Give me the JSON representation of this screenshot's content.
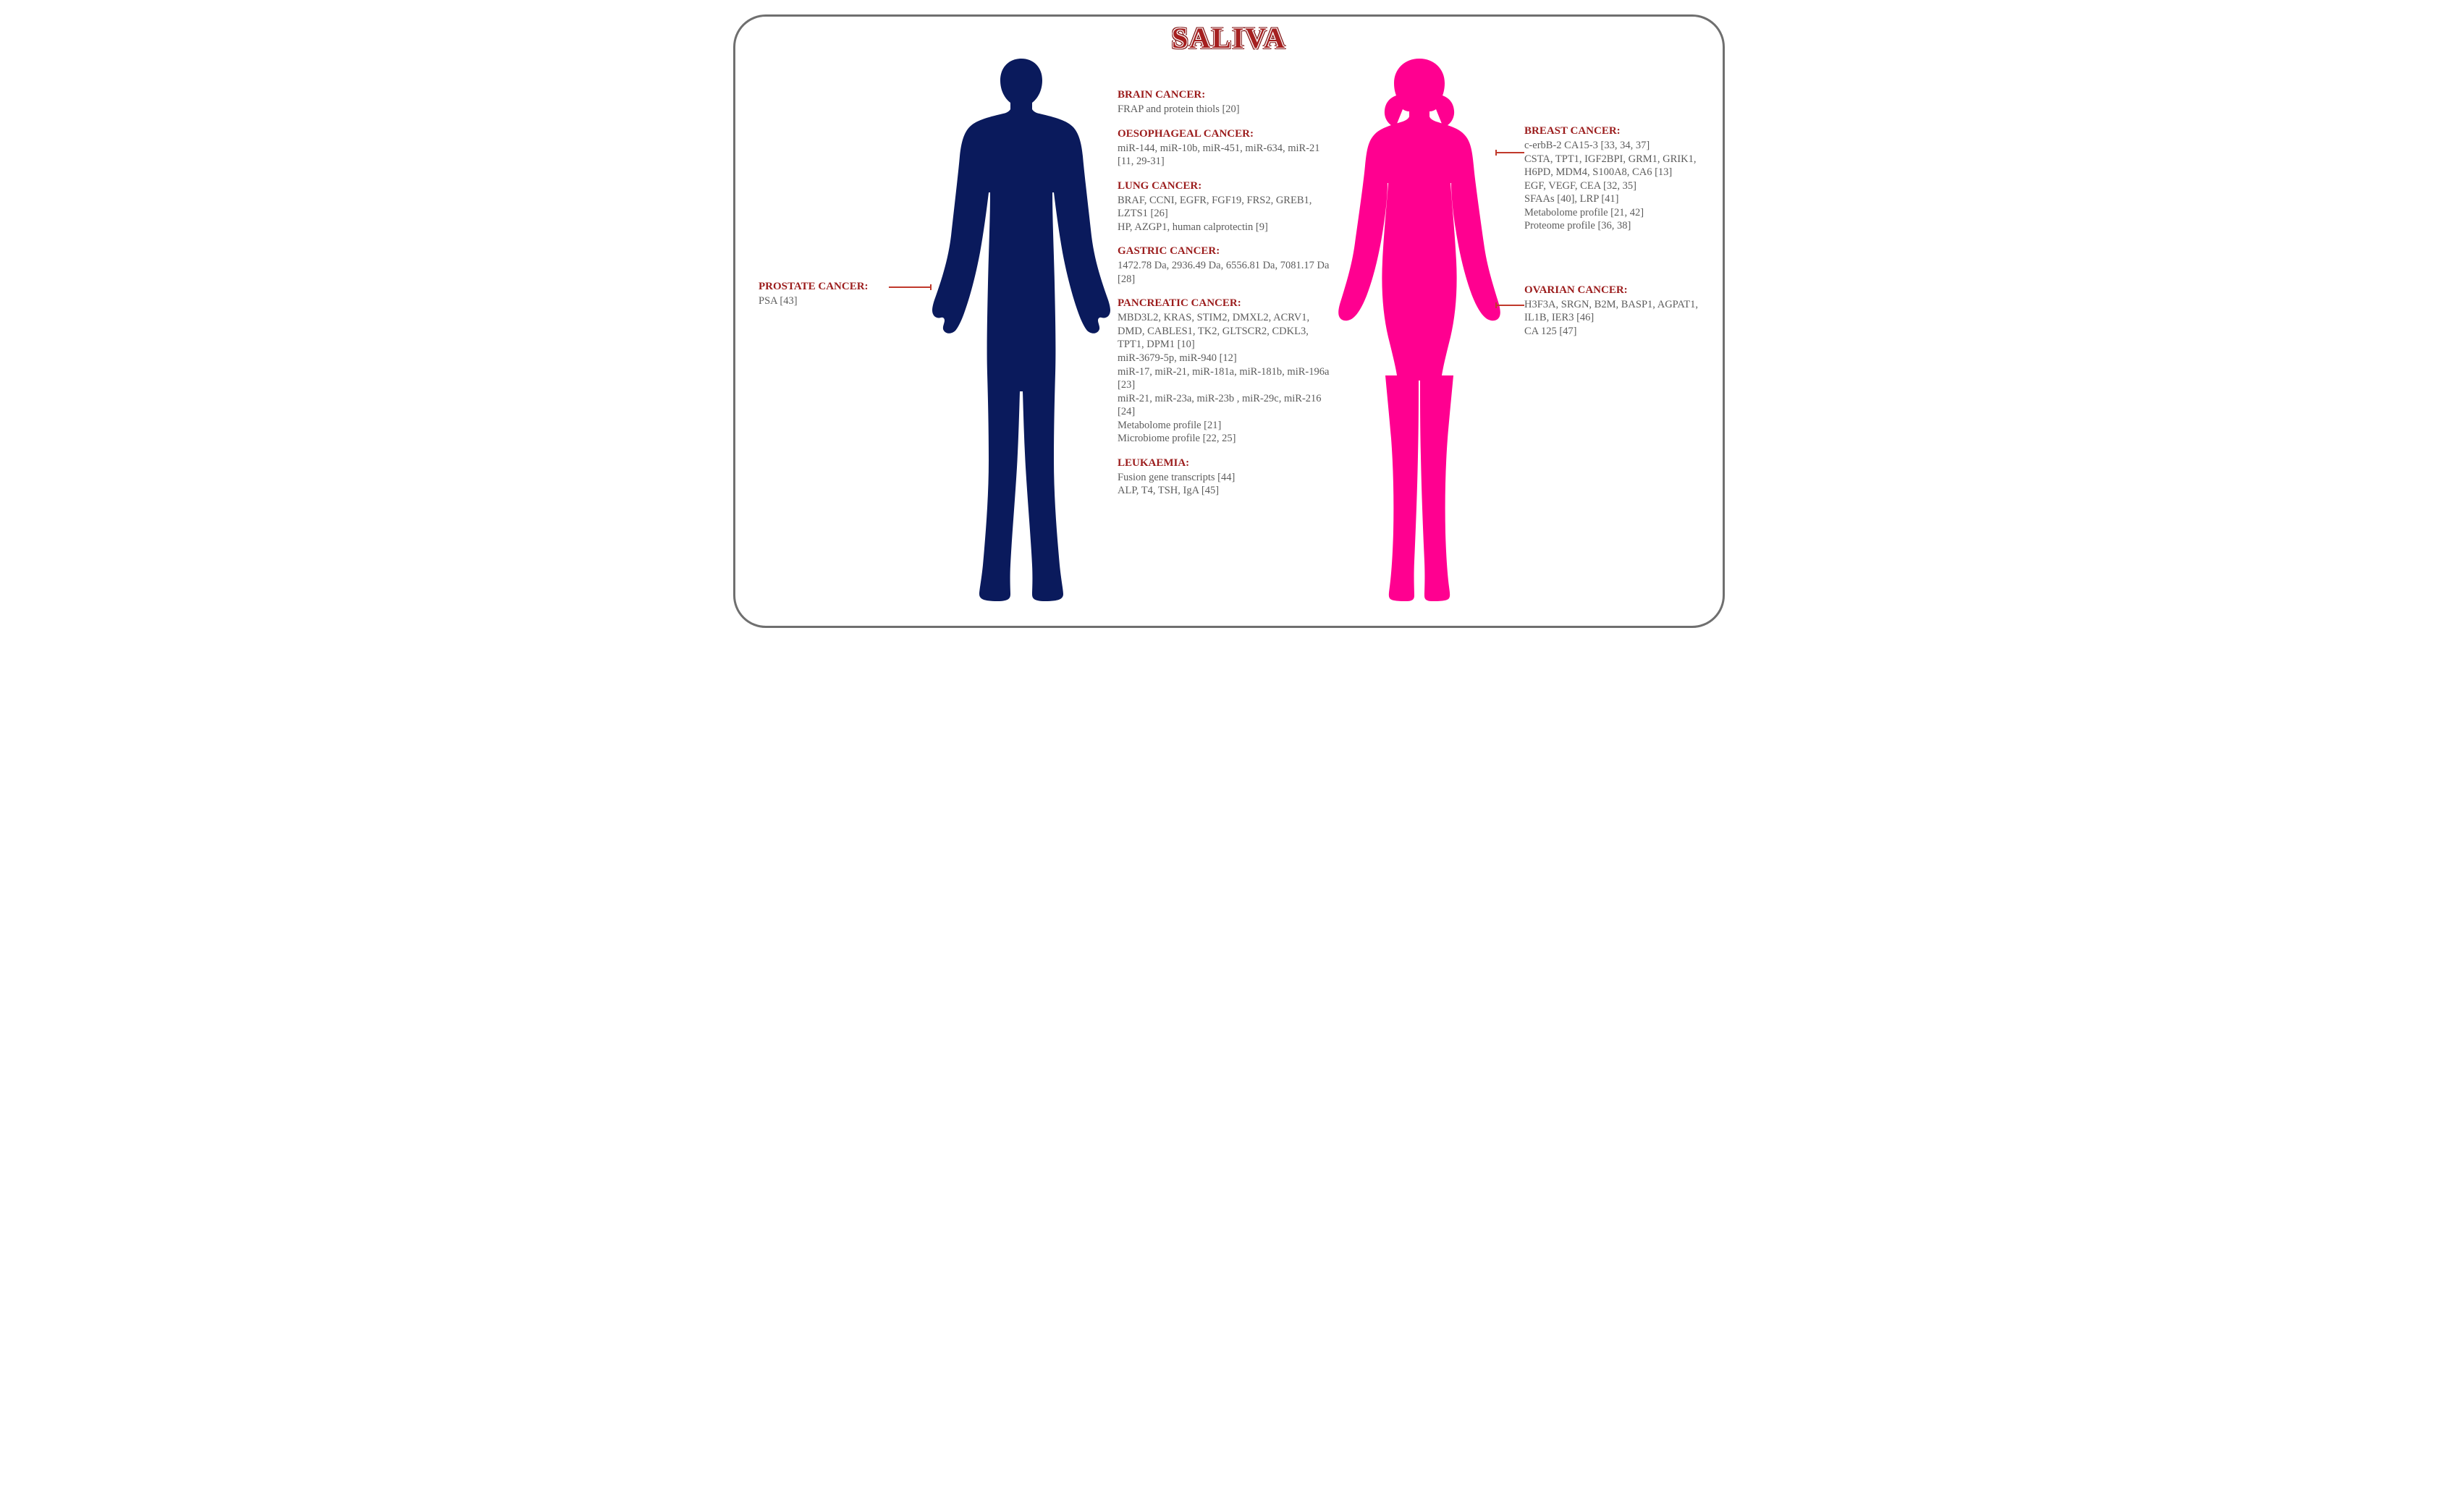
{
  "title": "SALIVA",
  "colors": {
    "male": "#0a1a5c",
    "female": "#ff0090",
    "heading": "#9b1c1c",
    "body": "#5c5c5c",
    "connector": "#c0392b",
    "frame": "#6f6f6f"
  },
  "left": {
    "prostate": {
      "title": "PROSTATE CANCER:",
      "body": "PSA [43]"
    }
  },
  "center": {
    "brain": {
      "title": "BRAIN CANCER:",
      "body": "FRAP and protein thiols [20]"
    },
    "oesophageal": {
      "title": "OESOPHAGEAL CANCER:",
      "body": "miR-144, miR-10b, miR-451, miR-634, miR-21 [11, 29-31]"
    },
    "lung": {
      "title": "LUNG CANCER:",
      "body": "BRAF, CCNI, EGFR, FGF19, FRS2, GREB1, LZTS1 [26]\nHP, AZGP1, human calprotectin [9]"
    },
    "gastric": {
      "title": "GASTRIC CANCER:",
      "body": "1472.78 Da, 2936.49 Da, 6556.81 Da, 7081.17 Da  [28]"
    },
    "pancreatic": {
      "title": "PANCREATIC CANCER:",
      "body": "MBD3L2, KRAS,  STIM2, DMXL2, ACRV1, DMD, CABLES1, TK2, GLTSCR2, CDKL3, TPT1, DPM1 [10]\nmiR-3679-5p, miR-940 [12]\nmiR-17, miR-21, miR-181a, miR-181b, miR-196a [23]\nmiR-21, miR-23a, miR-23b , miR-29c, miR-216 [24]\nMetabolome profile [21]\nMicrobiome profile  [22, 25]"
    },
    "leukaemia": {
      "title": "LEUKAEMIA:",
      "body": "Fusion gene transcripts [44]\nALP, T4, TSH, IgA [45]"
    }
  },
  "right": {
    "breast": {
      "title": "BREAST CANCER:",
      "body": "c-erbB-2 CA15-3 [33, 34, 37]\nCSTA, TPT1, IGF2BPI, GRM1, GRIK1, H6PD, MDM4, S100A8, CA6 [13]\nEGF, VEGF, CEA [32, 35]\nSFAAs [40], LRP [41]\nMetabolome profile [21, 42]\nProteome profile [36, 38]"
    },
    "ovarian": {
      "title": "OVARIAN CANCER:",
      "body": "H3F3A, SRGN, B2M, BASP1, AGPAT1, IL1B, IER3 [46]\nCA 125 [47]"
    }
  }
}
